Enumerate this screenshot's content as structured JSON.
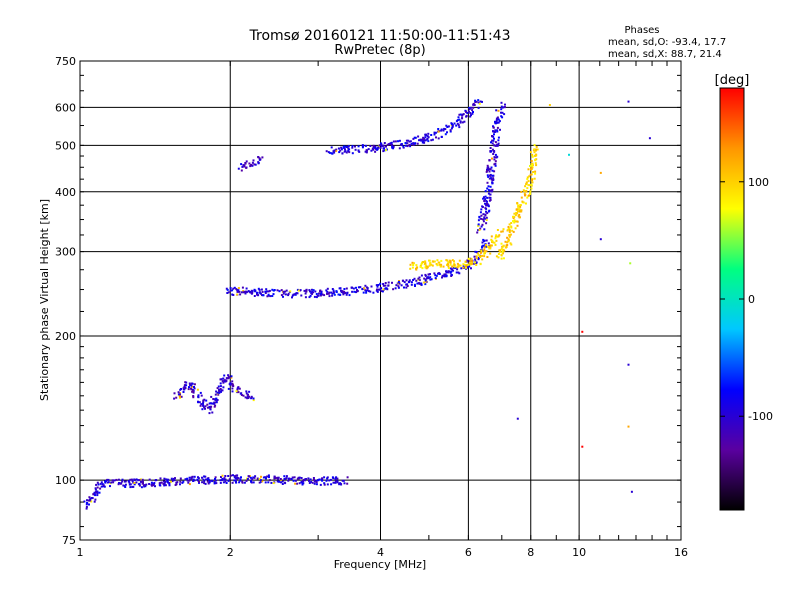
{
  "chart_data": {
    "type": "scatter",
    "title": "Tromsø 20160121 11:50:00-11:51:43",
    "subtitle": "RwPretec (8p)",
    "xlabel": "Frequency [MHz]",
    "ylabel": "Stationary phase Virtual Height [km]",
    "x_scale": "log",
    "y_scale": "log",
    "xlim": [
      1,
      16
    ],
    "ylim": [
      75,
      750
    ],
    "x_ticks": [
      1,
      2,
      4,
      6,
      8,
      10,
      16
    ],
    "x_tick_labels": [
      "1",
      "2",
      "4",
      "6",
      "8",
      "10",
      "16"
    ],
    "y_ticks": [
      75,
      100,
      200,
      300,
      400,
      500,
      600,
      750
    ],
    "y_tick_labels": [
      "75",
      "100",
      "200",
      "300",
      "400",
      "500",
      "600",
      "750"
    ],
    "grid": true,
    "legend": {
      "title": "Phases",
      "lines": [
        "mean, sd,O:  -93.4, 17.7",
        "mean, sd,X:  88.7, 21.4"
      ]
    },
    "colorbar": {
      "label": "[deg]",
      "range": [
        -180,
        180
      ],
      "ticks": [
        100,
        0,
        -100
      ],
      "tick_labels": [
        "100",
        "0",
        "-100"
      ],
      "colormap": [
        "#000000",
        "#5a00a0",
        "#0000ff",
        "#00c8ff",
        "#00ff80",
        "#ffff00",
        "#ff9600",
        "#ff0000"
      ]
    },
    "traces": [
      {
        "x": [
          1.02,
          1.1,
          1.3,
          1.6,
          2.0,
          2.4,
          2.8,
          3.1,
          3.4
        ],
        "y": [
          88,
          99,
          99,
          100,
          101,
          101,
          100,
          100,
          100
        ],
        "phase": -100
      },
      {
        "x": [
          1.55,
          1.65,
          1.8,
          1.95,
          2.05,
          2.2
        ],
        "y": [
          150,
          160,
          140,
          165,
          155,
          150
        ],
        "phase": -105
      },
      {
        "x": [
          1.96,
          2.2,
          2.6,
          3.0,
          3.6,
          4.2,
          4.8,
          5.3,
          5.8,
          6.2,
          6.5
        ],
        "y": [
          250,
          248,
          246,
          247,
          250,
          255,
          262,
          270,
          278,
          292,
          315
        ],
        "phase": -95
      },
      {
        "x": [
          4.5,
          5.2,
          5.8,
          6.3,
          6.6,
          6.9
        ],
        "y": [
          280,
          285,
          283,
          290,
          310,
          330
        ],
        "phase": 100
      },
      {
        "x": [
          6.3,
          6.5,
          6.6,
          6.7,
          6.8,
          7.0
        ],
        "y": [
          330,
          380,
          430,
          480,
          550,
          610
        ],
        "phase": -100
      },
      {
        "x": [
          6.9,
          7.2,
          7.5,
          7.8,
          8.0,
          8.1
        ],
        "y": [
          290,
          320,
          360,
          400,
          440,
          500
        ],
        "phase": 100
      },
      {
        "x": [
          3.1,
          3.5,
          4.0,
          4.6,
          5.2,
          5.8,
          6.3
        ],
        "y": [
          490,
          492,
          498,
          510,
          530,
          570,
          625
        ],
        "phase": -95
      },
      {
        "x": [
          2.1,
          2.3
        ],
        "y": [
          450,
          470
        ],
        "phase": -100
      }
    ],
    "outliers": [
      {
        "x": 10.1,
        "y": 205,
        "phase": 180
      },
      {
        "x": 10.1,
        "y": 118,
        "phase": 180
      },
      {
        "x": 12.5,
        "y": 620,
        "phase": -100
      },
      {
        "x": 13.8,
        "y": 520,
        "phase": -100
      },
      {
        "x": 12.5,
        "y": 175,
        "phase": -100
      },
      {
        "x": 12.5,
        "y": 130,
        "phase": 120
      },
      {
        "x": 12.7,
        "y": 95,
        "phase": -100
      },
      {
        "x": 11.0,
        "y": 440,
        "phase": 120
      },
      {
        "x": 11.0,
        "y": 320,
        "phase": -100
      },
      {
        "x": 12.6,
        "y": 285,
        "phase": 60
      },
      {
        "x": 9.5,
        "y": 480,
        "phase": -10
      },
      {
        "x": 8.7,
        "y": 610,
        "phase": 100
      },
      {
        "x": 7.5,
        "y": 135,
        "phase": -100
      }
    ]
  }
}
